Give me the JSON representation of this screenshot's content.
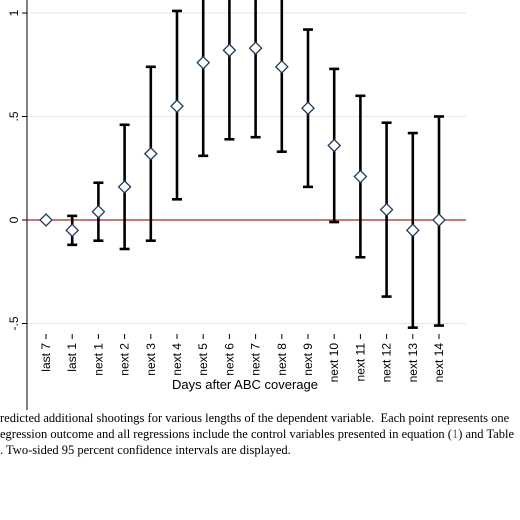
{
  "chart_data": {
    "type": "scatter",
    "title": "",
    "xlabel": "Days after ABC coverage",
    "ylabel": "",
    "categories": [
      "last 7",
      "last 1",
      "next 1",
      "next 2",
      "next 3",
      "next 4",
      "next 5",
      "next 6",
      "next 7",
      "next 8",
      "next 9",
      "next 10",
      "next 11",
      "next 12",
      "next 13",
      "next 14"
    ],
    "series": [
      {
        "values": [
          0,
          -0.05,
          0.04,
          0.16,
          0.32,
          0.55,
          0.76,
          0.82,
          0.83,
          0.74,
          0.54,
          0.36,
          0.21,
          0.05,
          -0.05,
          0
        ],
        "ci_low": [
          0,
          -0.12,
          -0.1,
          -0.14,
          -0.1,
          0.1,
          0.31,
          0.39,
          0.4,
          0.33,
          0.16,
          -0.01,
          -0.18,
          -0.37,
          -0.52,
          -0.51
        ],
        "ci_high": [
          0,
          0.02,
          0.18,
          0.46,
          0.74,
          1.01,
          1.2,
          1.24,
          1.26,
          1.14,
          0.92,
          0.73,
          0.6,
          0.47,
          0.42,
          0.5
        ]
      }
    ],
    "yticks": [
      "-1",
      "-.5",
      "0",
      ".5",
      "1",
      "1.5"
    ],
    "ytick_values": [
      -1,
      -0.5,
      0,
      0.5,
      1,
      1.5
    ],
    "ylim": [
      -1.05,
      1.55
    ],
    "reference_line": {
      "y": 0,
      "color": "#a3242d"
    },
    "grid": true,
    "marker_color": "#1f3a5f",
    "errorbar_color": "#000000"
  },
  "caption": {
    "line1": "redicted additional shootings for various lengths of the dependent variable.  Each point represents one",
    "line2_a": "egression outcome and all regressions include the control variables presented in equation (",
    "line2_ref": "1",
    "line2_b": ") and Table",
    "line3": ". Two-sided 95 percent confidence intervals are displayed."
  }
}
